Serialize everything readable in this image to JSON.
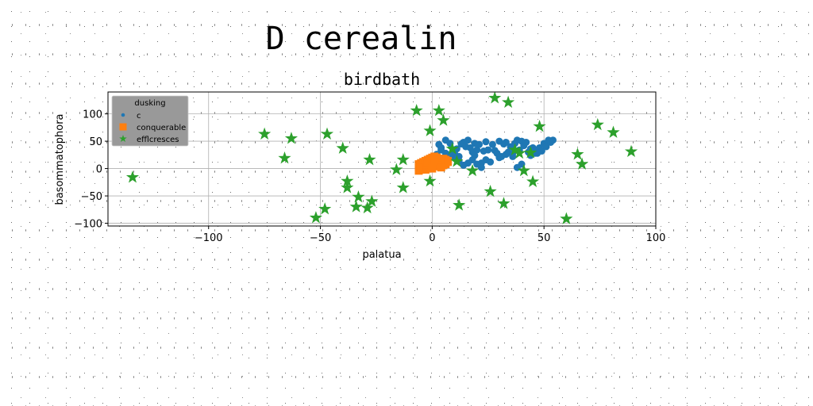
{
  "suptitle": "D cerealin",
  "chart_data": {
    "type": "scatter",
    "title": "birdbath",
    "xlabel": "palatua",
    "ylabel": "basommatophora",
    "xlim": [
      -145,
      100
    ],
    "ylim": [
      -105,
      140
    ],
    "xticks": [
      -100,
      -50,
      0,
      50,
      100
    ],
    "xtick_labels": [
      "−100",
      "−50",
      "0",
      "50",
      "100"
    ],
    "yticks": [
      -100,
      -50,
      0,
      50,
      100
    ],
    "ytick_labels": [
      "−100",
      "−50",
      "0",
      "50",
      "100"
    ],
    "grid": true,
    "legend": {
      "title": "dusking",
      "location": "upper-left"
    },
    "colors": {
      "c": "#1f77b4",
      "conquerable": "#ff7f0e",
      "efflcresces": "#2ca02c"
    },
    "series": [
      {
        "name": "c",
        "marker": "circle",
        "points": [
          [
            3,
            44
          ],
          [
            4,
            38
          ],
          [
            6,
            52
          ],
          [
            8,
            46
          ],
          [
            10,
            28
          ],
          [
            12,
            22
          ],
          [
            13,
            45
          ],
          [
            14,
            48
          ],
          [
            15,
            40
          ],
          [
            16,
            52
          ],
          [
            17,
            38
          ],
          [
            18,
            30
          ],
          [
            19,
            46
          ],
          [
            20,
            34
          ],
          [
            21,
            44
          ],
          [
            22,
            10
          ],
          [
            23,
            32
          ],
          [
            24,
            49
          ],
          [
            25,
            34
          ],
          [
            27,
            44
          ],
          [
            28,
            33
          ],
          [
            29,
            28
          ],
          [
            30,
            50
          ],
          [
            31,
            22
          ],
          [
            32,
            45
          ],
          [
            33,
            48
          ],
          [
            34,
            30
          ],
          [
            35,
            40
          ],
          [
            36,
            28
          ],
          [
            37,
            46
          ],
          [
            38,
            52
          ],
          [
            39,
            34
          ],
          [
            40,
            50
          ],
          [
            41,
            42
          ],
          [
            42,
            48
          ],
          [
            43,
            30
          ],
          [
            44,
            36
          ],
          [
            45,
            38
          ],
          [
            46,
            34
          ],
          [
            47,
            28
          ],
          [
            48,
            38
          ],
          [
            49,
            32
          ],
          [
            50,
            46
          ],
          [
            51,
            40
          ],
          [
            52,
            52
          ],
          [
            53,
            48
          ],
          [
            54,
            52
          ],
          [
            38,
            2
          ],
          [
            40,
            8
          ],
          [
            22,
            2
          ],
          [
            20,
            8
          ],
          [
            18,
            16
          ],
          [
            16,
            10
          ],
          [
            14,
            6
          ],
          [
            12,
            14
          ],
          [
            10,
            20
          ],
          [
            8,
            24
          ],
          [
            6,
            28
          ],
          [
            4,
            34
          ],
          [
            24,
            16
          ],
          [
            26,
            12
          ],
          [
            2,
            26
          ],
          [
            11,
            36
          ],
          [
            9,
            30
          ],
          [
            30,
            20
          ],
          [
            33,
            26
          ],
          [
            36,
            22
          ],
          [
            44,
            24
          ],
          [
            46,
            28
          ],
          [
            19,
            24
          ]
        ]
      },
      {
        "name": "conquerable",
        "marker": "square",
        "points": [
          [
            -6,
            -4
          ],
          [
            -5,
            -2
          ],
          [
            -4,
            0
          ],
          [
            -3,
            2
          ],
          [
            -2,
            4
          ],
          [
            -1,
            6
          ],
          [
            0,
            8
          ],
          [
            1,
            10
          ],
          [
            2,
            12
          ],
          [
            3,
            14
          ],
          [
            4,
            16
          ],
          [
            5,
            18
          ],
          [
            6,
            16
          ],
          [
            7,
            14
          ],
          [
            -6,
            8
          ],
          [
            -5,
            10
          ],
          [
            -4,
            12
          ],
          [
            -3,
            14
          ],
          [
            -2,
            16
          ],
          [
            -1,
            18
          ],
          [
            0,
            20
          ],
          [
            1,
            22
          ],
          [
            2,
            20
          ],
          [
            3,
            18
          ],
          [
            4,
            12
          ],
          [
            5,
            10
          ],
          [
            6,
            8
          ],
          [
            -3,
            -2
          ],
          [
            -2,
            0
          ],
          [
            -1,
            2
          ],
          [
            0,
            4
          ],
          [
            1,
            6
          ],
          [
            2,
            8
          ],
          [
            3,
            6
          ],
          [
            4,
            4
          ],
          [
            5,
            6
          ],
          [
            6,
            10
          ],
          [
            7,
            12
          ],
          [
            -5,
            4
          ],
          [
            -4,
            6
          ],
          [
            -3,
            8
          ],
          [
            -2,
            10
          ],
          [
            -1,
            12
          ],
          [
            0,
            14
          ],
          [
            1,
            16
          ],
          [
            2,
            6
          ],
          [
            3,
            4
          ],
          [
            4,
            2
          ],
          [
            -6,
            2
          ],
          [
            0,
            0
          ]
        ]
      },
      {
        "name": "efflcresces",
        "marker": "star",
        "points": [
          [
            -134,
            -16
          ],
          [
            -75,
            63
          ],
          [
            -63,
            55
          ],
          [
            -66,
            19
          ],
          [
            -47,
            63
          ],
          [
            -40,
            37
          ],
          [
            -38,
            -23
          ],
          [
            -38,
            -35
          ],
          [
            -33,
            -52
          ],
          [
            -34,
            -70
          ],
          [
            -29,
            -72
          ],
          [
            -27,
            -60
          ],
          [
            -28,
            16
          ],
          [
            -52,
            -90
          ],
          [
            -48,
            -74
          ],
          [
            -13,
            -35
          ],
          [
            -16,
            -2
          ],
          [
            -13,
            16
          ],
          [
            -7,
            106
          ],
          [
            -1,
            69
          ],
          [
            -1,
            -23
          ],
          [
            3,
            106
          ],
          [
            5,
            88
          ],
          [
            9,
            36
          ],
          [
            11,
            13
          ],
          [
            12,
            -67
          ],
          [
            18,
            -4
          ],
          [
            26,
            -42
          ],
          [
            28,
            129
          ],
          [
            34,
            121
          ],
          [
            32,
            -64
          ],
          [
            37,
            34
          ],
          [
            39,
            28
          ],
          [
            41,
            -4
          ],
          [
            45,
            -24
          ],
          [
            48,
            77
          ],
          [
            44,
            29
          ],
          [
            60,
            -92
          ],
          [
            65,
            26
          ],
          [
            67,
            8
          ],
          [
            74,
            80
          ],
          [
            81,
            66
          ],
          [
            89,
            31
          ]
        ]
      }
    ]
  }
}
